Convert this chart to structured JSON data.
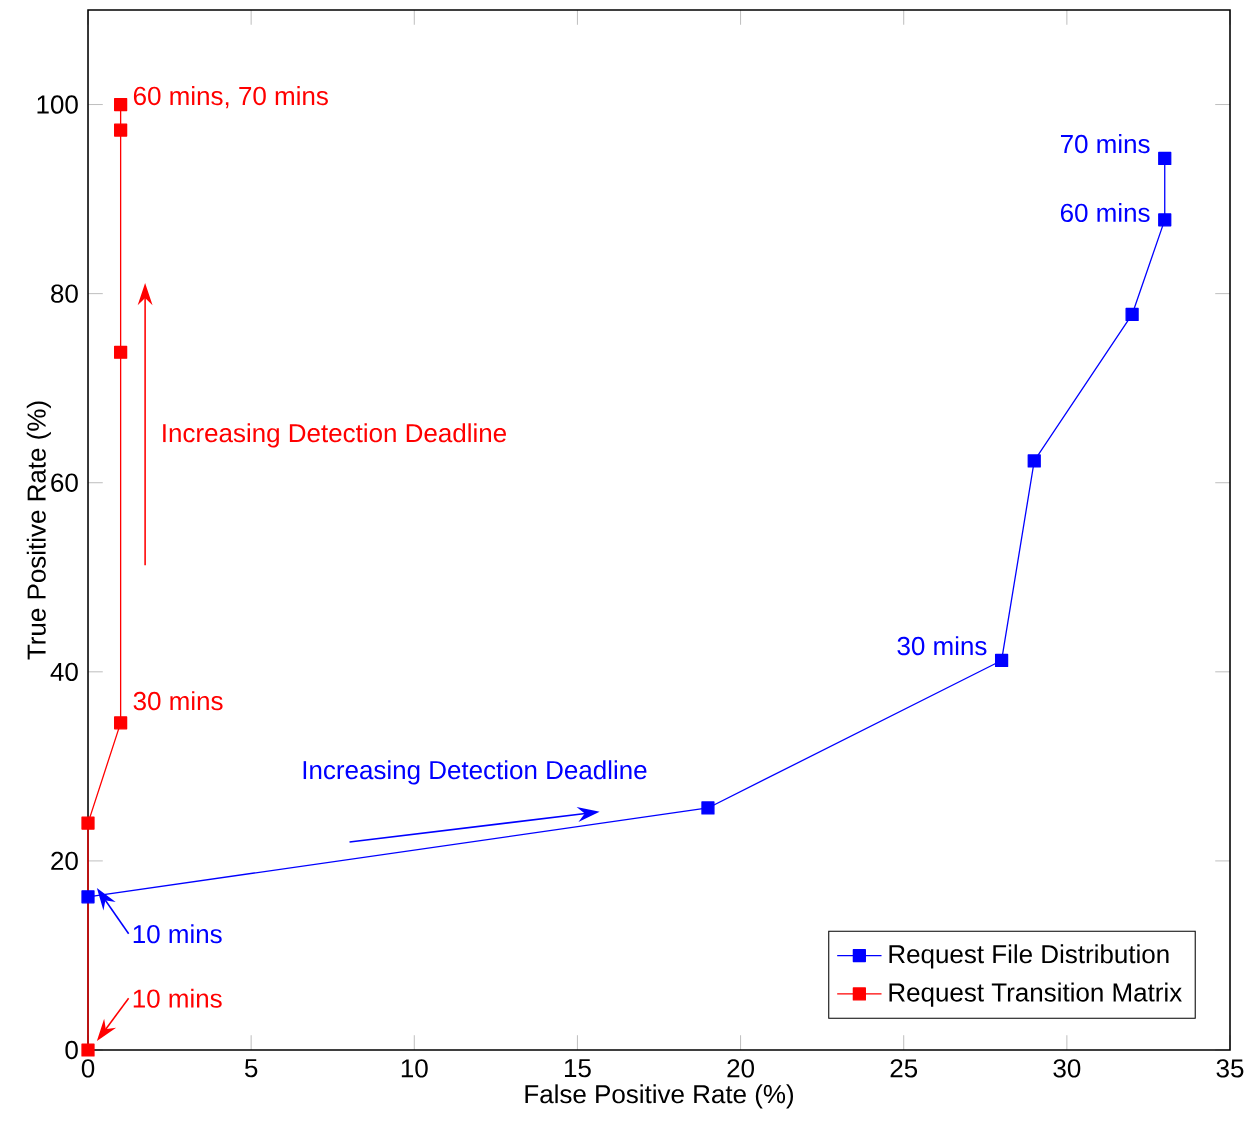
{
  "chart_data": {
    "type": "line",
    "xlabel": "False Positive Rate (%)",
    "ylabel": "True Positive Rate (%)",
    "xlim": [
      0,
      35
    ],
    "ylim": [
      0,
      110
    ],
    "xticks": [
      0,
      5,
      10,
      15,
      20,
      25,
      30,
      35
    ],
    "yticks": [
      0,
      20,
      40,
      60,
      80,
      100
    ],
    "grid": false,
    "legend": "bottom right",
    "marker": "square",
    "line_style": "solid",
    "series": [
      {
        "name": "Request File Distribution",
        "color": "#0000ff",
        "x": [
          0,
          19,
          28,
          29,
          32,
          33,
          33
        ],
        "values": [
          16.2,
          25.6,
          41.2,
          62.3,
          77.8,
          87.8,
          94.3
        ]
      },
      {
        "name": "Request Transition Matrix",
        "color": "#ff0000",
        "x": [
          0,
          0,
          1,
          1,
          1,
          1
        ],
        "values": [
          0,
          24,
          34.6,
          73.8,
          97.3,
          100
        ]
      }
    ],
    "annotations": [
      {
        "text": "60 mins, 70 mins",
        "x": 1,
        "y": 100
      },
      {
        "text": "30 mins",
        "x": 1,
        "y": 34.6
      },
      {
        "text": "10 mins",
        "x": 0,
        "y": 0
      },
      "Increasing Detection Deadline",
      {
        "text": "70 mins",
        "x": 33,
        "y": 94.3
      },
      {
        "text": "60 mins",
        "x": 33,
        "y": 87.8
      },
      {
        "text": "30 mins",
        "x": 28,
        "y": 41.2
      },
      {
        "text": "10 mins",
        "x": 0,
        "y": 16.2
      },
      "Increasing Detection Deadline"
    ]
  }
}
